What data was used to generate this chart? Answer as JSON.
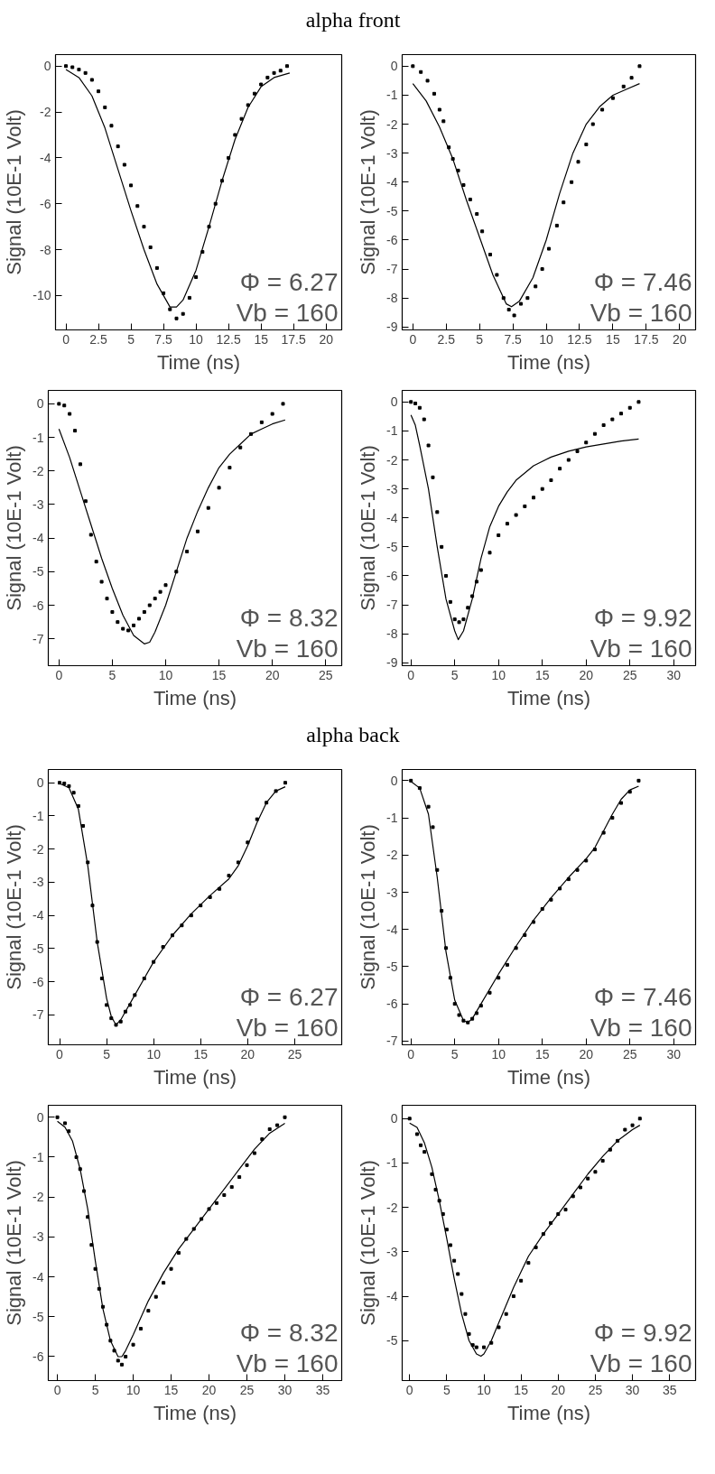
{
  "chart_data": [
    {
      "type": "line",
      "title": "alpha front",
      "xlabel": "Time (ns)",
      "ylabel": "Signal (10E-1 Volt)",
      "annotations": [
        "Φ = 6.27",
        "Vb = 160"
      ],
      "xlim": [
        -0.8,
        21.2
      ],
      "ylim": [
        -11.5,
        0.5
      ],
      "xticks": [
        0,
        2.5,
        5,
        7.5,
        10,
        12.5,
        15,
        17.5,
        20
      ],
      "yticks": [
        0,
        -2,
        -4,
        -6,
        -8,
        -10
      ],
      "series": [
        {
          "type": "scatter",
          "color": "#000000",
          "x": [
            0,
            0.5,
            1,
            1.5,
            2,
            2.5,
            3,
            3.5,
            4,
            4.5,
            5,
            5.5,
            6,
            6.5,
            7,
            7.5,
            8,
            8.5,
            9,
            9.5,
            10,
            10.5,
            11,
            11.5,
            12,
            12.5,
            13,
            13.5,
            14,
            14.5,
            15,
            15.5,
            16,
            16.5,
            17
          ],
          "values": [
            0,
            -0.05,
            -0.15,
            -0.3,
            -0.6,
            -1.1,
            -1.8,
            -2.6,
            -3.5,
            -4.3,
            -5.2,
            -6.1,
            -7,
            -7.9,
            -8.8,
            -9.9,
            -10.6,
            -11,
            -10.8,
            -10.1,
            -9.2,
            -8.1,
            -7,
            -6,
            -5,
            -4,
            -3,
            -2.3,
            -1.7,
            -1.2,
            -0.8,
            -0.5,
            -0.3,
            -0.2,
            0
          ]
        },
        {
          "color": "#000000",
          "x": [
            0,
            1,
            2,
            3,
            4,
            5,
            6,
            7,
            8,
            8.5,
            9,
            10,
            11,
            12,
            13,
            14,
            15,
            16,
            17.2
          ],
          "values": [
            -0.15,
            -0.5,
            -1.3,
            -2.7,
            -4.5,
            -6.3,
            -8,
            -9.5,
            -10.5,
            -10.5,
            -10.2,
            -8.9,
            -7,
            -5,
            -3.2,
            -1.8,
            -0.9,
            -0.5,
            -0.3
          ]
        }
      ]
    },
    {
      "type": "line",
      "xlabel": "Time (ns)",
      "ylabel": "Signal (10E-1 Volt)",
      "annotations": [
        "Φ = 7.46",
        "Vb = 160"
      ],
      "xlim": [
        -0.8,
        21.2
      ],
      "ylim": [
        -9.1,
        0.4
      ],
      "xticks": [
        0,
        2.5,
        5,
        7.5,
        10,
        12.5,
        15,
        17.5,
        20
      ],
      "yticks": [
        0,
        -1,
        -2,
        -3,
        -4,
        -5,
        -6,
        -7,
        -8,
        -9
      ],
      "series": [
        {
          "type": "scatter",
          "color": "#000000",
          "x": [
            0,
            0.6,
            1.1,
            1.6,
            2,
            2.3,
            2.7,
            3,
            3.4,
            3.8,
            4.3,
            4.8,
            5.2,
            5.8,
            6.3,
            6.8,
            7.2,
            7.6,
            8.1,
            8.6,
            9.2,
            9.7,
            10.2,
            10.8,
            11.3,
            11.9,
            12.4,
            13,
            13.5,
            14.2,
            15,
            15.8,
            16.4,
            17
          ],
          "values": [
            0,
            -0.2,
            -0.5,
            -0.95,
            -1.5,
            -1.9,
            -2.8,
            -3.2,
            -3.6,
            -4.1,
            -4.6,
            -5.1,
            -5.7,
            -6.5,
            -7.2,
            -8,
            -8.4,
            -8.6,
            -8.2,
            -8,
            -7.6,
            -7,
            -6.3,
            -5.5,
            -4.7,
            -4,
            -3.3,
            -2.7,
            -2,
            -1.5,
            -1.1,
            -0.7,
            -0.4,
            0
          ]
        },
        {
          "color": "#000000",
          "x": [
            0,
            1,
            2,
            3,
            4,
            5,
            6,
            7,
            7.4,
            8,
            9,
            10,
            11,
            12,
            13,
            14,
            15,
            16,
            17
          ],
          "values": [
            -0.6,
            -1.2,
            -2.1,
            -3.2,
            -4.6,
            -5.9,
            -7.2,
            -8.2,
            -8.3,
            -8.1,
            -7.3,
            -6,
            -4.4,
            -3,
            -2,
            -1.4,
            -1,
            -0.8,
            -0.6
          ]
        }
      ]
    },
    {
      "type": "line",
      "xlabel": "Time (ns)",
      "ylabel": "Signal (10E-1 Volt)",
      "annotations": [
        "Φ = 8.32",
        "Vb = 160"
      ],
      "xlim": [
        -1,
        26.5
      ],
      "ylim": [
        -7.8,
        0.4
      ],
      "xticks": [
        0,
        5,
        10,
        15,
        20,
        25
      ],
      "yticks": [
        0,
        -1,
        -2,
        -3,
        -4,
        -5,
        -6,
        -7
      ],
      "series": [
        {
          "type": "scatter",
          "color": "#000000",
          "x": [
            0,
            0.5,
            1,
            1.5,
            2,
            2.5,
            3,
            3.5,
            4,
            4.5,
            5,
            5.5,
            6,
            6.5,
            7,
            7.5,
            8,
            8.5,
            9,
            9.5,
            10,
            11,
            12,
            13,
            14,
            15,
            16,
            17,
            18,
            19,
            20,
            21
          ],
          "values": [
            0,
            -0.05,
            -0.3,
            -0.8,
            -1.8,
            -2.9,
            -3.9,
            -4.7,
            -5.3,
            -5.8,
            -6.2,
            -6.5,
            -6.7,
            -6.75,
            -6.6,
            -6.4,
            -6.2,
            -6,
            -5.8,
            -5.6,
            -5.4,
            -5,
            -4.4,
            -3.8,
            -3.1,
            -2.5,
            -1.9,
            -1.3,
            -0.9,
            -0.55,
            -0.3,
            0
          ]
        },
        {
          "color": "#000000",
          "x": [
            0,
            1,
            2,
            3,
            4,
            5,
            6,
            7,
            8,
            8.5,
            9,
            10,
            11,
            12,
            13,
            14,
            15,
            16,
            17,
            18,
            19,
            20,
            21.2
          ],
          "values": [
            -0.75,
            -1.6,
            -2.6,
            -3.6,
            -4.6,
            -5.5,
            -6.3,
            -6.9,
            -7.15,
            -7.1,
            -6.8,
            -6,
            -5,
            -4,
            -3.2,
            -2.5,
            -1.9,
            -1.5,
            -1.2,
            -0.9,
            -0.75,
            -0.6,
            -0.48
          ]
        }
      ]
    },
    {
      "type": "line",
      "xlabel": "Time (ns)",
      "ylabel": "Signal (10E-1 Volt)",
      "annotations": [
        "Φ = 9.92",
        "Vb = 160"
      ],
      "xlim": [
        -1,
        32.5
      ],
      "ylim": [
        -9.1,
        0.4
      ],
      "xticks": [
        0,
        5,
        10,
        15,
        20,
        25,
        30
      ],
      "yticks": [
        0,
        -1,
        -2,
        -3,
        -4,
        -5,
        -6,
        -7,
        -8,
        -9
      ],
      "series": [
        {
          "type": "scatter",
          "color": "#000000",
          "x": [
            0,
            0.5,
            1,
            1.5,
            2,
            2.5,
            3,
            3.5,
            4,
            4.5,
            5,
            5.5,
            6,
            6.5,
            7,
            7.5,
            8,
            9,
            10,
            11,
            12,
            13,
            14,
            15,
            16,
            17,
            18,
            19,
            20,
            21,
            22,
            23,
            24,
            25,
            26
          ],
          "values": [
            0,
            -0.05,
            -0.2,
            -0.6,
            -1.5,
            -2.6,
            -3.8,
            -5,
            -6,
            -6.9,
            -7.5,
            -7.6,
            -7.5,
            -7.1,
            -6.7,
            -6.2,
            -5.8,
            -5.2,
            -4.6,
            -4.2,
            -3.9,
            -3.6,
            -3.3,
            -3,
            -2.7,
            -2.3,
            -2,
            -1.7,
            -1.4,
            -1.1,
            -0.8,
            -0.6,
            -0.4,
            -0.2,
            0
          ]
        },
        {
          "color": "#000000",
          "x": [
            0,
            0.5,
            1,
            2,
            3,
            4,
            5,
            5.4,
            6,
            7,
            8,
            9,
            10,
            11,
            12,
            14,
            16,
            18,
            20,
            22,
            24,
            26
          ],
          "values": [
            -0.45,
            -0.8,
            -1.5,
            -3,
            -5,
            -6.8,
            -7.9,
            -8.2,
            -7.9,
            -6.8,
            -5.4,
            -4.3,
            -3.6,
            -3.1,
            -2.7,
            -2.2,
            -1.9,
            -1.7,
            -1.55,
            -1.45,
            -1.35,
            -1.28
          ]
        }
      ]
    },
    {
      "type": "line",
      "title": "alpha back",
      "xlabel": "Time (ns)",
      "ylabel": "Signal (10E-1 Volt)",
      "annotations": [
        "Φ = 6.27",
        "Vb = 160"
      ],
      "xlim": [
        -1.2,
        30
      ],
      "ylim": [
        -7.9,
        0.4
      ],
      "xticks": [
        0,
        5,
        10,
        15,
        20,
        25
      ],
      "yticks": [
        0,
        -1,
        -2,
        -3,
        -4,
        -5,
        -6,
        -7
      ],
      "series": [
        {
          "type": "scatter",
          "color": "#000000",
          "x": [
            0,
            0.5,
            1,
            1.5,
            2,
            2.5,
            3,
            3.5,
            4,
            4.5,
            5,
            5.5,
            6,
            6.5,
            7,
            7.5,
            8,
            9,
            10,
            11,
            12,
            13,
            14,
            15,
            16,
            17,
            18,
            19,
            20,
            21,
            22,
            23,
            24
          ],
          "values": [
            0,
            -0.02,
            -0.1,
            -0.3,
            -0.7,
            -1.3,
            -2.4,
            -3.7,
            -4.8,
            -5.9,
            -6.7,
            -7.1,
            -7.3,
            -7.2,
            -6.9,
            -6.7,
            -6.4,
            -5.9,
            -5.4,
            -4.95,
            -4.6,
            -4.3,
            -4,
            -3.7,
            -3.45,
            -3.2,
            -2.8,
            -2.4,
            -1.8,
            -1.1,
            -0.6,
            -0.25,
            0
          ]
        },
        {
          "color": "#000000",
          "x": [
            0,
            1,
            2,
            3,
            4,
            5,
            5.5,
            6,
            6.5,
            7,
            8,
            9,
            10,
            12,
            14,
            16,
            18,
            19,
            20,
            21,
            22,
            23,
            24
          ],
          "values": [
            -0.02,
            -0.15,
            -0.8,
            -2.5,
            -4.8,
            -6.5,
            -7.05,
            -7.3,
            -7.15,
            -6.9,
            -6.4,
            -5.9,
            -5.4,
            -4.6,
            -3.95,
            -3.4,
            -2.9,
            -2.5,
            -1.9,
            -1.2,
            -0.6,
            -0.25,
            -0.12
          ]
        }
      ]
    },
    {
      "type": "line",
      "xlabel": "Time (ns)",
      "ylabel": "Signal (10E-1 Volt)",
      "annotations": [
        "Φ = 7.46",
        "Vb = 160"
      ],
      "xlim": [
        -1,
        32.5
      ],
      "ylim": [
        -7.1,
        0.3
      ],
      "xticks": [
        0,
        5,
        10,
        15,
        20,
        25,
        30
      ],
      "yticks": [
        0,
        -1,
        -2,
        -3,
        -4,
        -5,
        -6,
        -7
      ],
      "series": [
        {
          "type": "scatter",
          "color": "#000000",
          "x": [
            0,
            1,
            2,
            2.5,
            3,
            3.5,
            4,
            4.5,
            5,
            5.5,
            6,
            6.5,
            7,
            7.5,
            8,
            9,
            10,
            11,
            12,
            13,
            14,
            15,
            16,
            17,
            18,
            19,
            20,
            21,
            22,
            23,
            24,
            25,
            26
          ],
          "values": [
            0,
            -0.2,
            -0.7,
            -1.25,
            -2.4,
            -3.5,
            -4.5,
            -5.3,
            -6,
            -6.3,
            -6.45,
            -6.5,
            -6.4,
            -6.25,
            -6.05,
            -5.7,
            -5.3,
            -4.95,
            -4.5,
            -4.15,
            -3.8,
            -3.45,
            -3.2,
            -2.9,
            -2.65,
            -2.4,
            -2.15,
            -1.85,
            -1.4,
            -1,
            -0.6,
            -0.3,
            0
          ]
        },
        {
          "color": "#000000",
          "x": [
            0,
            1,
            2,
            3,
            4,
            5,
            6,
            6.5,
            7,
            8,
            10,
            12,
            14,
            16,
            18,
            20,
            21,
            22,
            23,
            24,
            25,
            26
          ],
          "values": [
            -0.02,
            -0.2,
            -0.9,
            -2.6,
            -4.6,
            -5.9,
            -6.45,
            -6.5,
            -6.4,
            -6,
            -5.2,
            -4.45,
            -3.75,
            -3.15,
            -2.6,
            -2.1,
            -1.8,
            -1.35,
            -0.9,
            -0.5,
            -0.25,
            -0.15
          ]
        }
      ]
    },
    {
      "type": "line",
      "xlabel": "Time (ns)",
      "ylabel": "Signal (10E-1 Volt)",
      "annotations": [
        "Φ = 8.32",
        "Vb = 160"
      ],
      "xlim": [
        -1.2,
        37.5
      ],
      "ylim": [
        -6.6,
        0.3
      ],
      "xticks": [
        0,
        5,
        10,
        15,
        20,
        25,
        30,
        35
      ],
      "yticks": [
        0,
        -1,
        -2,
        -3,
        -4,
        -5,
        -6
      ],
      "series": [
        {
          "type": "scatter",
          "color": "#000000",
          "x": [
            0,
            1,
            1.5,
            2.5,
            3,
            3.5,
            4,
            4.5,
            5,
            5.5,
            6,
            6.5,
            7,
            7.5,
            8,
            8.5,
            9,
            10,
            11,
            12,
            13,
            14,
            15,
            16,
            17,
            18,
            19,
            20,
            21,
            22,
            23,
            24,
            25,
            26,
            27,
            28,
            29,
            30
          ],
          "values": [
            0,
            -0.15,
            -0.35,
            -1,
            -1.3,
            -1.85,
            -2.5,
            -3.2,
            -3.8,
            -4.3,
            -4.75,
            -5.2,
            -5.6,
            -5.85,
            -6.1,
            -6.2,
            -6,
            -5.7,
            -5.3,
            -4.85,
            -4.5,
            -4.15,
            -3.8,
            -3.4,
            -3.05,
            -2.8,
            -2.55,
            -2.3,
            -2.15,
            -1.95,
            -1.75,
            -1.5,
            -1.2,
            -0.9,
            -0.55,
            -0.3,
            -0.2,
            0
          ]
        },
        {
          "color": "#000000",
          "x": [
            0,
            1,
            2,
            3,
            4,
            5,
            6,
            7,
            8,
            8.5,
            9,
            10,
            12,
            14,
            16,
            18,
            20,
            22,
            24,
            26,
            28,
            30
          ],
          "values": [
            -0.1,
            -0.25,
            -0.6,
            -1.3,
            -2.3,
            -3.6,
            -4.8,
            -5.6,
            -6,
            -6,
            -5.85,
            -5.45,
            -4.6,
            -3.9,
            -3.3,
            -2.8,
            -2.3,
            -1.8,
            -1.3,
            -0.8,
            -0.4,
            -0.15
          ]
        }
      ]
    },
    {
      "type": "line",
      "xlabel": "Time (ns)",
      "ylabel": "Signal (10E-1 Volt)",
      "annotations": [
        "Φ = 9.92",
        "Vb = 160"
      ],
      "xlim": [
        -1,
        38.5
      ],
      "ylim": [
        -5.9,
        0.3
      ],
      "xticks": [
        0,
        5,
        10,
        15,
        20,
        25,
        30,
        35
      ],
      "yticks": [
        0,
        -1,
        -2,
        -3,
        -4,
        -5
      ],
      "series": [
        {
          "type": "scatter",
          "color": "#000000",
          "x": [
            0,
            1,
            1.5,
            2,
            3,
            3.5,
            4,
            4.5,
            5,
            5.5,
            6,
            6.5,
            7,
            7.5,
            8,
            8.5,
            9,
            10,
            11,
            12,
            13,
            14,
            15,
            16,
            17,
            18,
            19,
            20,
            21,
            22,
            23,
            24,
            25,
            26,
            27,
            28,
            29,
            30,
            31
          ],
          "values": [
            0,
            -0.35,
            -0.6,
            -0.75,
            -1.25,
            -1.6,
            -1.85,
            -2.15,
            -2.5,
            -2.85,
            -3.2,
            -3.5,
            -3.95,
            -4.4,
            -4.85,
            -5.1,
            -5.15,
            -5.15,
            -5.05,
            -4.7,
            -4.4,
            -4,
            -3.65,
            -3.25,
            -2.9,
            -2.6,
            -2.35,
            -2.15,
            -2.05,
            -1.75,
            -1.55,
            -1.35,
            -1.2,
            -0.95,
            -0.7,
            -0.5,
            -0.25,
            -0.15,
            0
          ]
        },
        {
          "color": "#000000",
          "x": [
            0,
            1,
            2,
            3,
            4,
            5,
            6,
            7,
            8,
            9,
            9.6,
            10,
            11,
            12,
            14,
            16,
            18,
            20,
            22,
            24,
            26,
            28,
            30,
            31
          ],
          "values": [
            -0.1,
            -0.2,
            -0.55,
            -1.1,
            -1.85,
            -2.7,
            -3.6,
            -4.4,
            -5,
            -5.3,
            -5.35,
            -5.3,
            -5,
            -4.6,
            -3.8,
            -3.1,
            -2.6,
            -2.15,
            -1.7,
            -1.25,
            -0.85,
            -0.5,
            -0.25,
            -0.15
          ]
        }
      ]
    }
  ]
}
